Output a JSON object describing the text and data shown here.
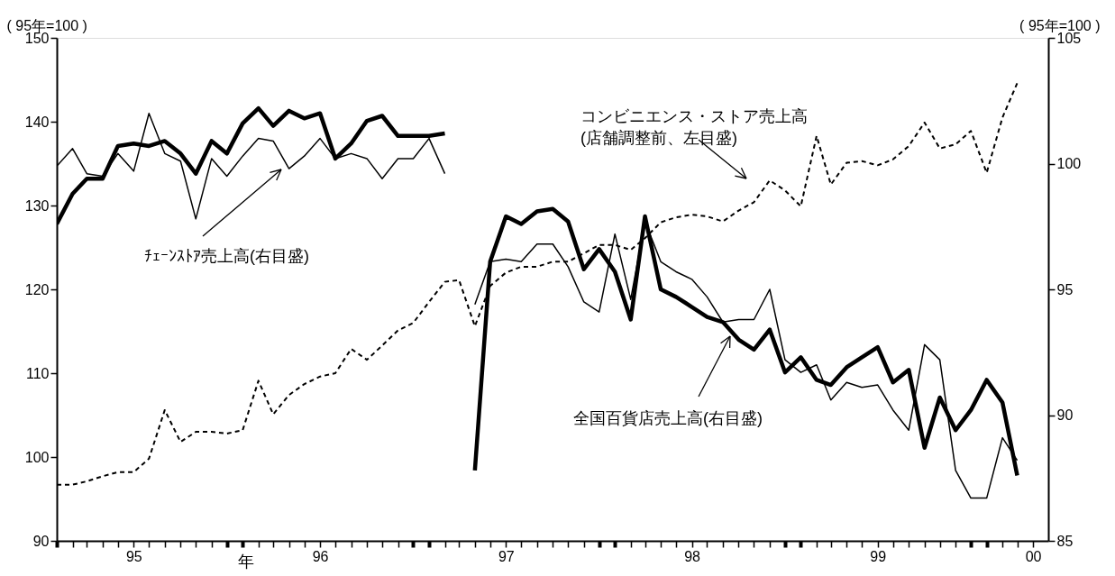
{
  "chart_data": {
    "type": "line",
    "ylabel": "( 95年=100 )",
    "y2label": "( 95年=100 )",
    "xlabel": "年",
    "x": [
      "1995-01",
      "1995-02",
      "1995-03",
      "1995-04",
      "1995-05",
      "1995-06",
      "1995-07",
      "1995-08",
      "1995-09",
      "1995-10",
      "1995-11",
      "1995-12",
      "1996-01",
      "1996-02",
      "1996-03",
      "1996-04",
      "1996-05",
      "1996-06",
      "1996-07",
      "1996-08",
      "1996-09",
      "1996-10",
      "1996-11",
      "1996-12",
      "1997-01",
      "1997-02",
      "1997-03",
      "1997-04",
      "1997-05",
      "1997-06",
      "1997-07",
      "1997-08",
      "1997-09",
      "1997-10",
      "1997-11",
      "1997-12",
      "1998-01",
      "1998-02",
      "1998-03",
      "1998-04",
      "1998-05",
      "1998-06",
      "1998-07",
      "1998-08",
      "1998-09",
      "1998-10",
      "1998-11",
      "1998-12",
      "1999-01",
      "1999-02",
      "1999-03",
      "1999-04",
      "1999-05",
      "1999-06",
      "1999-07",
      "1999-08",
      "1999-09",
      "1999-10",
      "1999-11",
      "1999-12",
      "2000-01",
      "2000-02",
      "2000-03"
    ],
    "series": [
      {
        "name": "コンビニエンス・ストア売上高\n(店舗調整前、左目盛)",
        "color": "#000000",
        "axis": "y",
        "line_style": "dashed",
        "values": [
          96.7,
          96.7,
          97.1,
          97.7,
          98.2,
          98.2,
          99.8,
          105.6,
          101.8,
          103.0,
          103.0,
          102.8,
          103.2,
          109.1,
          105.1,
          107.4,
          108.7,
          109.6,
          110.0,
          112.9,
          111.6,
          113.3,
          115.1,
          116.0,
          118.5,
          120.9,
          121.1,
          115.6,
          120.4,
          122.0,
          122.7,
          122.7,
          123.3,
          123.3,
          124.3,
          125.3,
          125.3,
          124.7,
          126.1,
          128.0,
          128.6,
          128.9,
          128.7,
          128.1,
          129.4,
          130.4,
          133.0,
          131.8,
          129.9,
          138.3,
          132.5,
          135.1,
          135.3,
          134.8,
          135.5,
          137.1,
          139.9,
          136.8,
          137.3,
          138.9,
          133.9,
          140.5,
          144.6
        ]
      },
      {
        "name": "ﾁｪｰﾝｽﾄｱ売上高(右目盛)",
        "color": "#000000",
        "axis": "y2",
        "line_style": "solid",
        "values": [
          99.9,
          100.6,
          99.6,
          99.5,
          100.4,
          99.7,
          102.0,
          100.4,
          100.1,
          97.8,
          100.2,
          99.5,
          100.3,
          101.0,
          100.9,
          99.8,
          100.3,
          101.0,
          100.2,
          100.4,
          100.2,
          99.4,
          100.2,
          100.2,
          101.0,
          99.6,
          null,
          94.4,
          96.1,
          96.2,
          96.1,
          96.8,
          96.8,
          95.9,
          94.5,
          94.1,
          97.2,
          94.6,
          97.7,
          96.1,
          95.7,
          95.4,
          94.7,
          93.7,
          93.8,
          93.8,
          95.0,
          92.2,
          91.7,
          92.0,
          90.6,
          91.3,
          91.1,
          91.2,
          90.2,
          89.4,
          92.8,
          92.2,
          87.8,
          86.7,
          86.7,
          89.1,
          88.2
        ]
      },
      {
        "name": "全国百貨店売上高(右目盛)",
        "color": "#000000",
        "axis": "y2",
        "line_style": "solid",
        "values": [
          97.6,
          98.8,
          99.4,
          99.4,
          100.7,
          100.8,
          100.7,
          100.9,
          100.4,
          99.6,
          100.9,
          100.4,
          101.6,
          102.2,
          101.5,
          102.1,
          101.8,
          102.0,
          100.2,
          100.8,
          101.7,
          101.9,
          101.1,
          101.1,
          101.1,
          101.2,
          null,
          87.8,
          96.1,
          97.9,
          97.6,
          98.1,
          98.2,
          97.7,
          95.8,
          96.6,
          95.7,
          93.8,
          97.9,
          95.0,
          94.7,
          94.3,
          93.9,
          93.7,
          93.0,
          92.6,
          93.4,
          91.7,
          92.3,
          91.4,
          91.2,
          91.9,
          92.3,
          92.7,
          91.3,
          91.8,
          88.7,
          90.7,
          89.4,
          90.2,
          91.4,
          90.5,
          87.6
        ]
      }
    ],
    "xlim": [
      "1995-01",
      "2000-05"
    ],
    "xticks": [
      {
        "value": "1995-01",
        "label": null
      },
      {
        "value": "1995-02",
        "label": null
      },
      {
        "value": "1995-03",
        "label": null
      },
      {
        "value": "1995-04",
        "label": null
      },
      {
        "value": "1995-05",
        "label": null
      },
      {
        "value": "1995-06",
        "label": "95"
      },
      {
        "value": "1995-07",
        "label": null
      },
      {
        "value": "1995-08",
        "label": null
      },
      {
        "value": "1995-09",
        "label": null
      },
      {
        "value": "1995-10",
        "label": null
      },
      {
        "value": "1995-11",
        "label": null
      },
      {
        "value": "1995-12",
        "label": null
      },
      {
        "value": "1996-01",
        "label": null
      },
      {
        "value": "1996-02",
        "label": null
      },
      {
        "value": "1996-03",
        "label": null
      },
      {
        "value": "1996-04",
        "label": null
      },
      {
        "value": "1996-05",
        "label": null
      },
      {
        "value": "1996-06",
        "label": "96"
      },
      {
        "value": "1996-07",
        "label": null
      },
      {
        "value": "1996-08",
        "label": null
      },
      {
        "value": "1996-09",
        "label": null
      },
      {
        "value": "1996-10",
        "label": null
      },
      {
        "value": "1996-11",
        "label": null
      },
      {
        "value": "1996-12",
        "label": null
      },
      {
        "value": "1997-01",
        "label": null
      },
      {
        "value": "1997-02",
        "label": null
      },
      {
        "value": "1997-03",
        "label": null
      },
      {
        "value": "1997-04",
        "label": null
      },
      {
        "value": "1997-05",
        "label": null
      },
      {
        "value": "1997-06",
        "label": "97"
      },
      {
        "value": "1997-07",
        "label": null
      },
      {
        "value": "1997-08",
        "label": null
      },
      {
        "value": "1997-09",
        "label": null
      },
      {
        "value": "1997-10",
        "label": null
      },
      {
        "value": "1997-11",
        "label": null
      },
      {
        "value": "1997-12",
        "label": null
      },
      {
        "value": "1998-01",
        "label": null
      },
      {
        "value": "1998-02",
        "label": null
      },
      {
        "value": "1998-03",
        "label": null
      },
      {
        "value": "1998-04",
        "label": null
      },
      {
        "value": "1998-05",
        "label": null
      },
      {
        "value": "1998-06",
        "label": "98"
      },
      {
        "value": "1998-07",
        "label": null
      },
      {
        "value": "1998-08",
        "label": null
      },
      {
        "value": "1998-09",
        "label": null
      },
      {
        "value": "1998-10",
        "label": null
      },
      {
        "value": "1998-11",
        "label": null
      },
      {
        "value": "1998-12",
        "label": null
      },
      {
        "value": "1999-01",
        "label": null
      },
      {
        "value": "1999-02",
        "label": null
      },
      {
        "value": "1999-03",
        "label": null
      },
      {
        "value": "1999-04",
        "label": null
      },
      {
        "value": "1999-05",
        "label": null
      },
      {
        "value": "1999-06",
        "label": "99"
      },
      {
        "value": "1999-07",
        "label": null
      },
      {
        "value": "1999-08",
        "label": null
      },
      {
        "value": "1999-09",
        "label": null
      },
      {
        "value": "1999-10",
        "label": null
      },
      {
        "value": "1999-11",
        "label": null
      },
      {
        "value": "1999-12",
        "label": null
      },
      {
        "value": "2000-01",
        "label": null
      },
      {
        "value": "2000-02",
        "label": null
      },
      {
        "value": "2000-03",
        "label": null
      },
      {
        "value": "2000-04",
        "label": "00"
      }
    ],
    "ylim": [
      90,
      150
    ],
    "yticks": [
      90,
      100,
      110,
      120,
      130,
      140,
      150
    ],
    "y2lim": [
      85,
      105
    ],
    "y2ticks": [
      85,
      90,
      95,
      100,
      105
    ],
    "grid": false,
    "marker": "none"
  }
}
